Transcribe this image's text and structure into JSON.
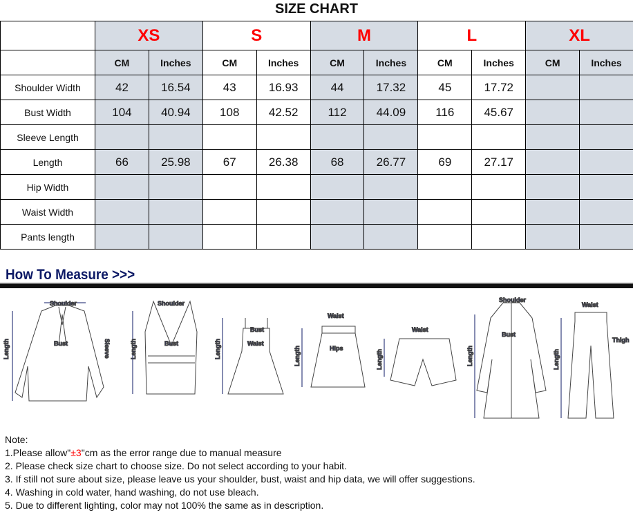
{
  "title": "SIZE CHART",
  "sizes": [
    "XS",
    "S",
    "M",
    "L",
    "XL"
  ],
  "units": [
    "CM",
    "Inches"
  ],
  "rows": [
    {
      "label": "Shoulder Width",
      "values": [
        "42",
        "16.54",
        "43",
        "16.93",
        "44",
        "17.32",
        "45",
        "17.72",
        "",
        ""
      ]
    },
    {
      "label": "Bust Width",
      "values": [
        "104",
        "40.94",
        "108",
        "42.52",
        "112",
        "44.09",
        "116",
        "45.67",
        "",
        ""
      ]
    },
    {
      "label": "Sleeve Length",
      "values": [
        "",
        "",
        "",
        "",
        "",
        "",
        "",
        "",
        "",
        ""
      ]
    },
    {
      "label": "Length",
      "values": [
        "66",
        "25.98",
        "67",
        "26.38",
        "68",
        "26.77",
        "69",
        "27.17",
        "",
        ""
      ]
    },
    {
      "label": "Hip Width",
      "values": [
        "",
        "",
        "",
        "",
        "",
        "",
        "",
        "",
        "",
        ""
      ]
    },
    {
      "label": "Waist Width",
      "values": [
        "",
        "",
        "",
        "",
        "",
        "",
        "",
        "",
        "",
        ""
      ]
    },
    {
      "label": "Pants length",
      "values": [
        "",
        "",
        "",
        "",
        "",
        "",
        "",
        "",
        "",
        ""
      ]
    }
  ],
  "how_to_measure": {
    "heading": "How To Measure >>>",
    "labels": {
      "shoulder": "Shoulder",
      "bust": "Bust",
      "sleeve": "Sleeve",
      "length": "Length",
      "waist": "Waist",
      "hips": "Hips",
      "thigh": "Thigh"
    }
  },
  "notes": {
    "heading": "Note:",
    "line1_pre": "1.Please allow\"",
    "line1_red": "±3",
    "line1_post": "\"cm as the error range due to manual measure",
    "lines": [
      "2. Please check size chart to choose size. Do not select according to your habit.",
      "3. If still not sure about size, please leave us your shoulder, bust, waist and hip data, we will offer suggestions.",
      "4. Washing in cold water, hand washing, do not use bleach.",
      "5. Due to different lighting, color may not 100% the same as in description."
    ]
  },
  "colors": {
    "shade": "#d6dce4",
    "size_label": "#ff0000",
    "heading": "#0d1a66"
  }
}
